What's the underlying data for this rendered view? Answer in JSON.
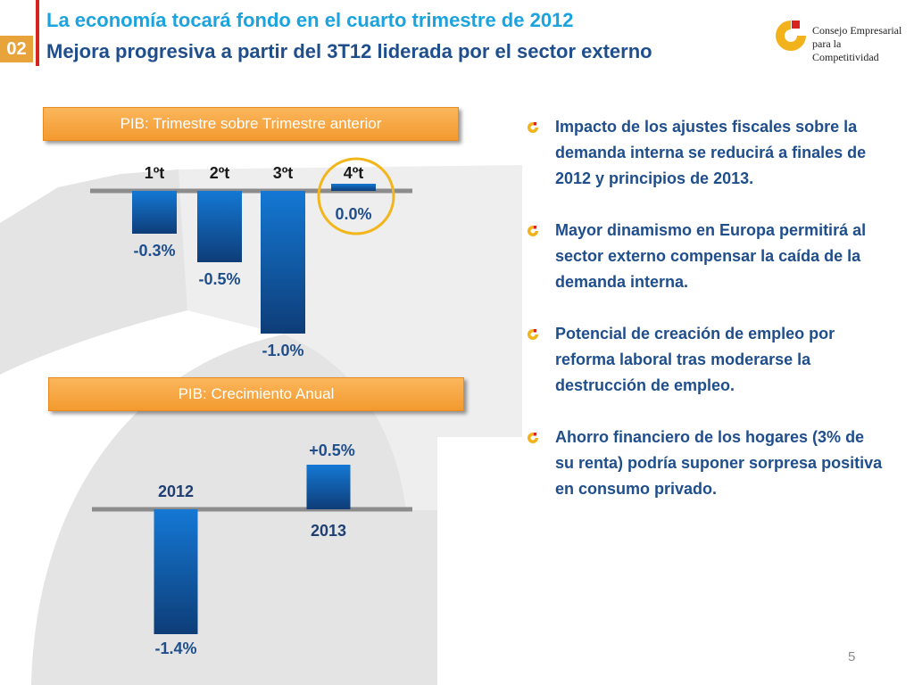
{
  "section_number": "02",
  "title": "La economía tocará fondo en el cuarto trimestre de 2012",
  "subtitle": "Mejora progresiva a partir del 3T12 liderada por el sector externo",
  "logo": {
    "lines": [
      "Consejo Empresarial",
      "para la",
      "Competitividad"
    ]
  },
  "colors": {
    "accent_blue": "#1aa3df",
    "dark_blue": "#1f4e8c",
    "orange": "#f39a2f",
    "red": "#d9231f",
    "highlight_circle": "#f2b61c"
  },
  "chart_data": [
    {
      "type": "bar",
      "title": "PIB: Trimestre sobre Trimestre anterior",
      "categories": [
        "1ºt",
        "2ºt",
        "3ºt",
        "4ºt"
      ],
      "values": [
        -0.3,
        -0.5,
        -1.0,
        0.0
      ],
      "value_labels": [
        "-0.3%",
        "-0.5%",
        "-1.0%",
        "0.0%"
      ],
      "highlighted_category": "4ºt",
      "ylim": [
        -1.0,
        0.0
      ]
    },
    {
      "type": "bar",
      "title": "PIB:  Crecimiento Anual",
      "categories": [
        "2012",
        "2013"
      ],
      "values": [
        -1.4,
        0.5
      ],
      "value_labels": [
        "-1.4%",
        "+0.5%"
      ],
      "ylim": [
        -1.4,
        0.5
      ]
    }
  ],
  "bullets": [
    "Impacto de los ajustes fiscales sobre la demanda interna se reducirá a finales de 2012 y principios de 2013.",
    "Mayor dinamismo en Europa permitirá al sector externo compensar la caída de la demanda interna.",
    "Potencial de creación de  empleo por reforma laboral tras moderarse la destrucción de empleo.",
    "Ahorro financiero de los hogares (3% de su renta) podría suponer sorpresa positiva en consumo privado."
  ],
  "page_number": "5"
}
